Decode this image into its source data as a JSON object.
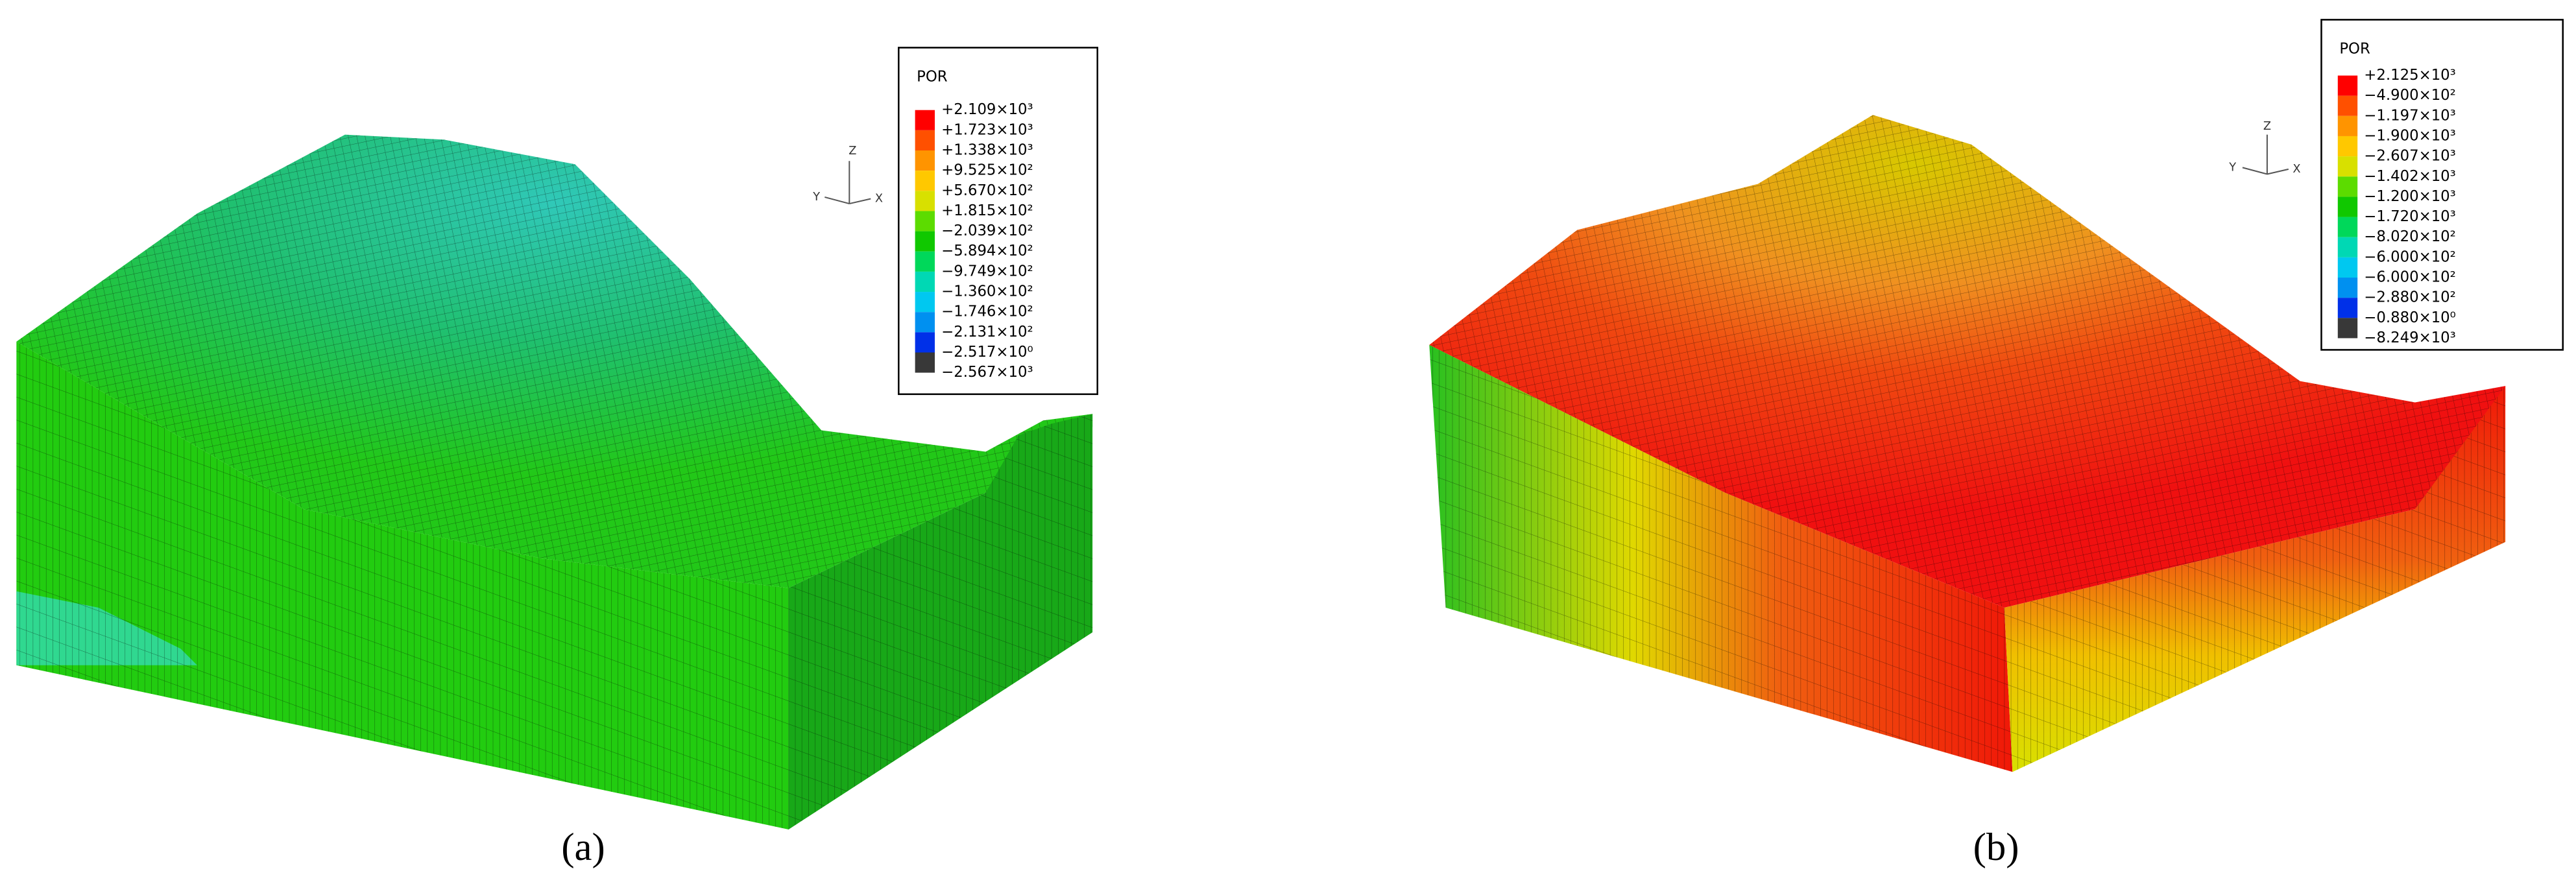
{
  "panels": [
    {
      "caption": "(a)",
      "triad": {
        "z": "Z",
        "y": "Y",
        "x": "X"
      },
      "legend": {
        "title": "POR",
        "labels": [
          "+2.109×10³",
          "+1.723×10³",
          "+1.338×10³",
          "+9.525×10²",
          "+5.670×10²",
          "+1.815×10²",
          "−2.039×10²",
          "−5.894×10²",
          "−9.749×10²",
          "−1.360×10²",
          "−1.746×10²",
          "−2.131×10²",
          "−2.517×10⁰",
          "−2.567×10³"
        ],
        "colors": [
          "#ff0000",
          "#ff5000",
          "#ff9400",
          "#ffc800",
          "#d8e000",
          "#5cdc00",
          "#10c800",
          "#00d85a",
          "#00d8b4",
          "#00c8f0",
          "#0090f0",
          "#0030e8",
          "#383838"
        ]
      }
    },
    {
      "caption": "(b)",
      "triad": {
        "z": "Z",
        "y": "Y",
        "x": "X"
      },
      "legend": {
        "title": "POR",
        "labels": [
          "+2.125×10³",
          "−4.900×10²",
          "−1.197×10³",
          "−1.900×10³",
          "−2.607×10³",
          "−1.402×10³",
          "−1.200×10³",
          "−1.720×10³",
          "−8.020×10²",
          "−6.000×10²",
          "−6.000×10²",
          "−2.880×10²",
          "−0.880×10⁰",
          "−8.249×10³"
        ],
        "colors": [
          "#ff0000",
          "#ff5000",
          "#ff9400",
          "#ffc800",
          "#d8e000",
          "#5cdc00",
          "#10c800",
          "#00d85a",
          "#00d8b4",
          "#00c8f0",
          "#0090f0",
          "#0030e8",
          "#383838"
        ]
      }
    }
  ]
}
